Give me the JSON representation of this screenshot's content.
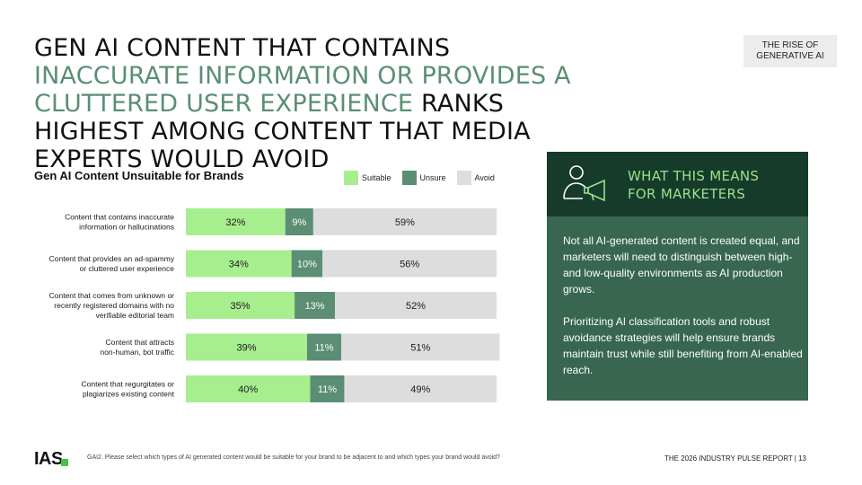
{
  "headline": {
    "part1": "GEN AI CONTENT THAT CONTAINS ",
    "accent": "INACCURATE INFORMATION OR PROVIDES A CLUTTERED USER EXPERIENCE",
    "part2": " RANKS HIGHEST AMONG CONTENT THAT MEDIA EXPERTS WOULD AVOID"
  },
  "tag": {
    "line1": "THE RISE OF",
    "line2": "GENERATIVE AI"
  },
  "colors": {
    "suitable": "#a7ee8f",
    "unsure": "#5b8e74",
    "avoid": "#dddddd",
    "accent": "#5a8f73"
  },
  "chart_data": {
    "type": "bar",
    "orientation": "horizontal",
    "stacked": true,
    "normalized_percent": true,
    "title": "Gen AI Content Unsuitable for Brands",
    "legend_position": "top-right",
    "categories": [
      [
        "Content that contains inaccurate",
        "information or hallucinations"
      ],
      [
        "Content that provides an ad-spammy",
        "or cluttered user experience"
      ],
      [
        "Content that comes from unknown or",
        "recently registered domains with no",
        "verifiable editorial team"
      ],
      [
        "Content that attracts",
        "non-human, bot  traffic"
      ],
      [
        "Content that regurgitates or",
        "plagiarizes existing content"
      ]
    ],
    "series": [
      {
        "name": "Suitable",
        "color": "#a7ee8f",
        "values": [
          32,
          34,
          35,
          39,
          40
        ],
        "labels": [
          "32%",
          "34%",
          "35%",
          "39%",
          "40%"
        ]
      },
      {
        "name": "Unsure",
        "color": "#5b8e74",
        "values": [
          9,
          10,
          13,
          11,
          11
        ],
        "labels": [
          "9%",
          "10%",
          "13%",
          "11%",
          "11%"
        ]
      },
      {
        "name": "Avoid",
        "color": "#dddddd",
        "values": [
          59,
          56,
          52,
          51,
          49
        ],
        "labels": [
          "59%",
          "56%",
          "52%",
          "51%",
          "49%"
        ]
      }
    ]
  },
  "side_panel": {
    "icon": "person-megaphone-icon",
    "title_line1": "WHAT THIS MEANS",
    "title_line2": "FOR MARKETERS",
    "paragraph1": "Not all AI-generated content is created equal, and marketers will need to distinguish between high- and low-quality environments as AI production grows.",
    "paragraph2": "Prioritizing AI classification tools and robust avoidance strategies will help ensure brands maintain trust while still benefiting from AI-enabled reach."
  },
  "footer": {
    "logo": "IAS",
    "footnote": "GAI2. Please select which types of AI generated content would be suitable for your brand to be adjacent to and which types your brand would avoid?",
    "report": "THE 2026 INDUSTRY PULSE REPORT  |  13"
  }
}
